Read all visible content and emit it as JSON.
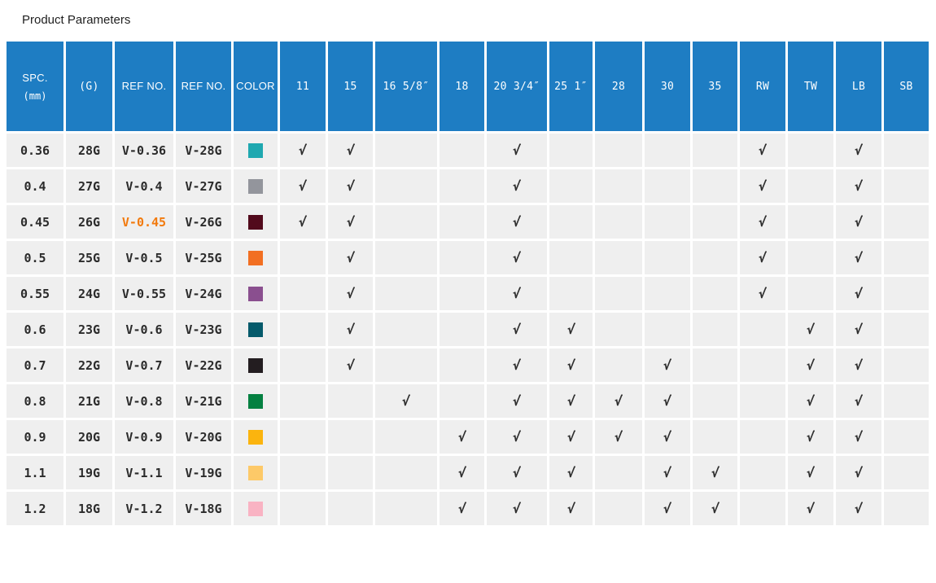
{
  "page": {
    "title": "Product Parameters"
  },
  "colors": {
    "header_bg": "#1e7dc3",
    "cell_bg": "#efefef",
    "highlight": "#f27a0d"
  },
  "check_symbol": "√",
  "table": {
    "fixed_columns": [
      {
        "id": "spc",
        "label": "SPC.",
        "sublabel": "(mm)",
        "mono": false
      },
      {
        "id": "gauge",
        "label": "(G)",
        "sublabel": "",
        "mono": true
      },
      {
        "id": "ref1",
        "label": "REF NO.",
        "sublabel": "",
        "mono": false
      },
      {
        "id": "ref2",
        "label": "REF NO.",
        "sublabel": "",
        "mono": false
      },
      {
        "id": "color",
        "label": "COLOR",
        "sublabel": "",
        "mono": false
      }
    ],
    "size_columns": [
      {
        "id": "c11",
        "label": "11"
      },
      {
        "id": "c15",
        "label": "15"
      },
      {
        "id": "c16",
        "label": "16 5/8″"
      },
      {
        "id": "c18",
        "label": "18"
      },
      {
        "id": "c20",
        "label": "20 3/4″"
      },
      {
        "id": "c25",
        "label": "25 1″"
      },
      {
        "id": "c28",
        "label": "28"
      },
      {
        "id": "c30",
        "label": "30"
      },
      {
        "id": "c35",
        "label": "35"
      },
      {
        "id": "rw",
        "label": "RW"
      },
      {
        "id": "tw",
        "label": "TW"
      },
      {
        "id": "lb",
        "label": "LB"
      },
      {
        "id": "sb",
        "label": "SB"
      }
    ],
    "rows": [
      {
        "spc": "0.36",
        "gauge": "28G",
        "ref1": "V-0.36",
        "ref2": "V-28G",
        "highlight": false,
        "color": "#1fa8b0",
        "color_name": "teal",
        "checks": [
          "c11",
          "c15",
          "c20",
          "rw",
          "lb"
        ]
      },
      {
        "spc": "0.4",
        "gauge": "27G",
        "ref1": "V-0.4",
        "ref2": "V-27G",
        "highlight": false,
        "color": "#93959c",
        "color_name": "gray",
        "checks": [
          "c11",
          "c15",
          "c20",
          "rw",
          "lb"
        ]
      },
      {
        "spc": "0.45",
        "gauge": "26G",
        "ref1": "V-0.45",
        "ref2": "V-26G",
        "highlight": true,
        "color": "#520a1c",
        "color_name": "maroon",
        "checks": [
          "c11",
          "c15",
          "c20",
          "rw",
          "lb"
        ]
      },
      {
        "spc": "0.5",
        "gauge": "25G",
        "ref1": "V-0.5",
        "ref2": "V-25G",
        "highlight": false,
        "color": "#f26f22",
        "color_name": "orange",
        "checks": [
          "c15",
          "c20",
          "rw",
          "lb"
        ]
      },
      {
        "spc": "0.55",
        "gauge": "24G",
        "ref1": "V-0.55",
        "ref2": "V-24G",
        "highlight": false,
        "color": "#8a4f8f",
        "color_name": "purple",
        "checks": [
          "c15",
          "c20",
          "rw",
          "lb"
        ]
      },
      {
        "spc": "0.6",
        "gauge": "23G",
        "ref1": "V-0.6",
        "ref2": "V-23G",
        "highlight": false,
        "color": "#055a6b",
        "color_name": "dark-teal",
        "checks": [
          "c15",
          "c20",
          "c25",
          "tw",
          "lb"
        ]
      },
      {
        "spc": "0.7",
        "gauge": "22G",
        "ref1": "V-0.7",
        "ref2": "V-22G",
        "highlight": false,
        "color": "#231d20",
        "color_name": "black",
        "checks": [
          "c15",
          "c20",
          "c25",
          "c30",
          "tw",
          "lb"
        ]
      },
      {
        "spc": "0.8",
        "gauge": "21G",
        "ref1": "V-0.8",
        "ref2": "V-21G",
        "highlight": false,
        "color": "#048041",
        "color_name": "green",
        "checks": [
          "c16",
          "c20",
          "c25",
          "c28",
          "c30",
          "tw",
          "lb"
        ]
      },
      {
        "spc": "0.9",
        "gauge": "20G",
        "ref1": "V-0.9",
        "ref2": "V-20G",
        "highlight": false,
        "color": "#fbb40e",
        "color_name": "amber",
        "checks": [
          "c18",
          "c20",
          "c25",
          "c28",
          "c30",
          "tw",
          "lb"
        ]
      },
      {
        "spc": "1.1",
        "gauge": "19G",
        "ref1": "V-1.1",
        "ref2": "V-19G",
        "highlight": false,
        "color": "#fdc968",
        "color_name": "light-amber",
        "checks": [
          "c18",
          "c20",
          "c25",
          "c30",
          "c35",
          "tw",
          "lb"
        ]
      },
      {
        "spc": "1.2",
        "gauge": "18G",
        "ref1": "V-1.2",
        "ref2": "V-18G",
        "highlight": false,
        "color": "#f9b3c3",
        "color_name": "pink",
        "checks": [
          "c18",
          "c20",
          "c25",
          "c30",
          "c35",
          "tw",
          "lb"
        ]
      }
    ]
  }
}
